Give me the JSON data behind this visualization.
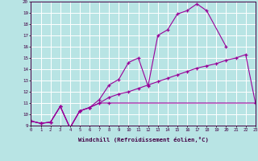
{
  "xlabel": "Windchill (Refroidissement éolien,°C)",
  "bg_color": "#b8e4e4",
  "line_color": "#990099",
  "grid_color": "#ffffff",
  "xlim": [
    0,
    23
  ],
  "ylim": [
    9,
    20
  ],
  "curve1_x": [
    0,
    1,
    2,
    3,
    4,
    5,
    6,
    7,
    8,
    9,
    10,
    11,
    12,
    13,
    14,
    15,
    16,
    17,
    18,
    20
  ],
  "curve1_y": [
    9.4,
    9.2,
    9.3,
    10.7,
    8.8,
    10.3,
    10.6,
    11.3,
    12.6,
    13.1,
    14.6,
    15.0,
    12.5,
    17.0,
    17.5,
    18.9,
    19.2,
    19.8,
    19.2,
    16.0
  ],
  "curve2_x": [
    0,
    1,
    2,
    3,
    4,
    5,
    6,
    7,
    8,
    23
  ],
  "curve2_y": [
    9.4,
    9.2,
    9.3,
    10.7,
    8.8,
    10.3,
    10.6,
    11.0,
    11.0,
    11.0
  ],
  "curve3_x": [
    0,
    1,
    2,
    3,
    4,
    5,
    6,
    7,
    8,
    9,
    10,
    11,
    12,
    13,
    14,
    15,
    16,
    17,
    18,
    19,
    20,
    21,
    22,
    23
  ],
  "curve3_y": [
    9.4,
    9.2,
    9.3,
    10.7,
    8.8,
    10.3,
    10.6,
    11.0,
    11.5,
    11.8,
    12.0,
    12.3,
    12.6,
    12.9,
    13.2,
    13.5,
    13.8,
    14.1,
    14.3,
    14.5,
    14.8,
    15.0,
    15.3,
    11.0
  ],
  "xtick_labels": [
    "0",
    "1",
    "2",
    "3",
    "4",
    "5",
    "6",
    "7",
    "8",
    "9",
    "10",
    "11",
    "12",
    "13",
    "14",
    "15",
    "16",
    "17",
    "18",
    "19",
    "20",
    "21",
    "22",
    "23"
  ],
  "ytick_labels": [
    "9",
    "10",
    "11",
    "12",
    "13",
    "14",
    "15",
    "16",
    "17",
    "18",
    "19",
    "20"
  ]
}
